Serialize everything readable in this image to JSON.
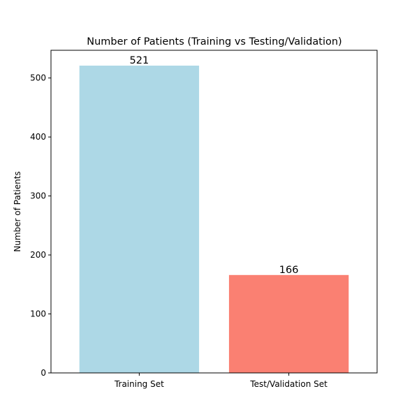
{
  "chart_data": {
    "type": "bar",
    "title": "Number of Patients (Training vs Testing/Validation)",
    "xlabel": "",
    "ylabel": "Number of Patients",
    "categories": [
      "Training Set",
      "Test/Validation Set"
    ],
    "values": [
      521,
      166
    ],
    "data_labels": [
      "521",
      "166"
    ],
    "colors": [
      "#add8e6",
      "#fa8072"
    ],
    "ylim": [
      0,
      547
    ],
    "yticks": [
      0,
      100,
      200,
      300,
      400,
      500
    ],
    "grid": false,
    "legend": "none"
  }
}
